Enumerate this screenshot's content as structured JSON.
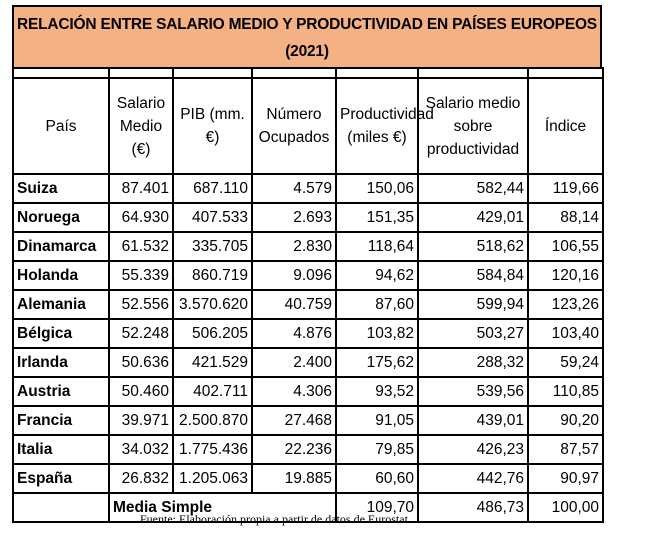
{
  "title_line1": "RELACIÓN ENTRE SALARIO MEDIO Y PRODUCTIVIDAD EN PAÍSES EUROPEOS",
  "title_line2": "(2021)",
  "headers": [
    "País",
    "Salario Medio (€)",
    "PIB (mm.€)",
    "Número Ocupados",
    "Productividad (miles €)",
    "Salario medio sobre productividad",
    "Índice"
  ],
  "rows": [
    [
      "Suiza",
      "87.401",
      "687.110",
      "4.579",
      "150,06",
      "582,44",
      "119,66"
    ],
    [
      "Noruega",
      "64.930",
      "407.533",
      "2.693",
      "151,35",
      "429,01",
      "88,14"
    ],
    [
      "Dinamarca",
      "61.532",
      "335.705",
      "2.830",
      "118,64",
      "518,62",
      "106,55"
    ],
    [
      "Holanda",
      "55.339",
      "860.719",
      "9.096",
      "94,62",
      "584,84",
      "120,16"
    ],
    [
      "Alemania",
      "52.556",
      "3.570.620",
      "40.759",
      "87,60",
      "599,94",
      "123,26"
    ],
    [
      "Bélgica",
      "52.248",
      "506.205",
      "4.876",
      "103,82",
      "503,27",
      "103,40"
    ],
    [
      "Irlanda",
      "50.636",
      "421.529",
      "2.400",
      "175,62",
      "288,32",
      "59,24"
    ],
    [
      "Austria",
      "50.460",
      "402.711",
      "4.306",
      "93,52",
      "539,56",
      "110,85"
    ],
    [
      "Francia",
      "39.971",
      "2.500.870",
      "27.468",
      "91,05",
      "439,01",
      "90,20"
    ],
    [
      "Italia",
      "34.032",
      "1.775.436",
      "22.236",
      "79,85",
      "426,23",
      "87,57"
    ],
    [
      "España",
      "26.832",
      "1.205.063",
      "19.885",
      "60,60",
      "442,76",
      "90,97"
    ]
  ],
  "footer": {
    "label": "Media Simple",
    "productividad": "109,70",
    "salario_sobre_prod": "486,73",
    "indice": "100,00"
  },
  "source": "Fuente: Elaboración propia a partir de datos de Eurostat",
  "colors": {
    "title_bg": "#f4b183"
  }
}
